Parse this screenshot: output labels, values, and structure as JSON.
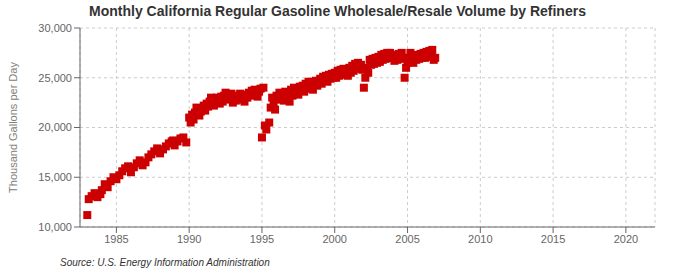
{
  "chart_data": {
    "type": "scatter",
    "title": "Monthly California Regular Gasoline Wholesale/Resale Volume by Refiners",
    "ylabel": "Thousand Gallons per Day",
    "annotations": [
      "Source: U.S. Energy Information Administration"
    ],
    "color": "#cc0000",
    "marker": "square",
    "grid": true,
    "xlim": [
      1982.5,
      2022
    ],
    "ylim": [
      10000,
      30000
    ],
    "xticks": [
      1985,
      1990,
      1995,
      2000,
      2005,
      2010,
      2015,
      2020
    ],
    "yticks": [
      {
        "value": 10000,
        "label": "10,000"
      },
      {
        "value": 15000,
        "label": "15,000"
      },
      {
        "value": 20000,
        "label": "20,000"
      },
      {
        "value": 25000,
        "label": "25,000"
      },
      {
        "value": 30000,
        "label": "30,000"
      }
    ],
    "x": [
      1983.0,
      1983.1,
      1983.3,
      1983.5,
      1983.7,
      1983.9,
      1984.0,
      1984.2,
      1984.4,
      1984.6,
      1984.8,
      1985.0,
      1985.2,
      1985.4,
      1985.6,
      1985.8,
      1986.0,
      1986.2,
      1986.4,
      1986.6,
      1986.8,
      1987.0,
      1987.2,
      1987.4,
      1987.6,
      1987.8,
      1988.0,
      1988.2,
      1988.4,
      1988.6,
      1988.8,
      1988.9,
      1989.0,
      1989.2,
      1989.4,
      1989.6,
      1989.8,
      1990.0,
      1990.1,
      1990.2,
      1990.3,
      1990.4,
      1990.5,
      1990.6,
      1990.7,
      1990.8,
      1990.9,
      1991.0,
      1991.1,
      1991.2,
      1991.3,
      1991.4,
      1991.5,
      1991.6,
      1991.7,
      1991.8,
      1991.9,
      1992.0,
      1992.1,
      1992.2,
      1992.3,
      1992.4,
      1992.5,
      1992.6,
      1992.7,
      1992.8,
      1992.9,
      1993.0,
      1993.1,
      1993.2,
      1993.3,
      1993.4,
      1993.5,
      1993.6,
      1993.7,
      1993.8,
      1993.9,
      1994.0,
      1994.1,
      1994.2,
      1994.3,
      1994.4,
      1994.5,
      1994.6,
      1994.7,
      1994.8,
      1994.9,
      1995.0,
      1995.1,
      1995.2,
      1995.3,
      1995.5,
      1995.6,
      1995.7,
      1995.8,
      1995.9,
      1996.0,
      1996.1,
      1996.2,
      1996.3,
      1996.4,
      1996.5,
      1996.6,
      1996.7,
      1996.8,
      1996.9,
      1997.0,
      1997.1,
      1997.2,
      1997.3,
      1997.4,
      1997.5,
      1997.6,
      1997.7,
      1997.8,
      1997.9,
      1998.0,
      1998.1,
      1998.2,
      1998.3,
      1998.4,
      1998.5,
      1998.6,
      1998.7,
      1998.8,
      1998.9,
      1999.0,
      1999.1,
      1999.2,
      1999.3,
      1999.4,
      1999.5,
      1999.6,
      1999.7,
      1999.8,
      1999.9,
      2000.0,
      2000.1,
      2000.2,
      2000.3,
      2000.4,
      2000.5,
      2000.6,
      2000.7,
      2000.8,
      2000.9,
      2001.0,
      2001.1,
      2001.2,
      2001.3,
      2001.4,
      2001.5,
      2001.6,
      2001.7,
      2001.8,
      2001.9,
      2002.0,
      2002.1,
      2002.2,
      2002.3,
      2002.4,
      2002.5,
      2002.6,
      2002.7,
      2002.8,
      2002.9,
      2003.0,
      2003.1,
      2003.2,
      2003.3,
      2003.4,
      2003.5,
      2003.6,
      2003.7,
      2003.8,
      2003.9,
      2004.0,
      2004.1,
      2004.2,
      2004.3,
      2004.4,
      2004.5,
      2004.6,
      2004.7,
      2004.8,
      2004.9,
      2005.0,
      2005.1,
      2005.2,
      2005.3,
      2005.4,
      2005.5,
      2005.6,
      2005.7,
      2005.8,
      2005.9,
      2006.0,
      2006.1,
      2006.2,
      2006.3,
      2006.4,
      2006.5,
      2006.6,
      2006.7,
      2006.8,
      2006.9
    ],
    "values": [
      11200,
      12800,
      13100,
      13400,
      13000,
      13300,
      13700,
      14300,
      14000,
      14600,
      15000,
      14800,
      15200,
      15600,
      15900,
      16100,
      15500,
      16000,
      16400,
      16700,
      16200,
      16500,
      17000,
      17300,
      17600,
      17900,
      17400,
      17800,
      18100,
      18400,
      18600,
      18700,
      18200,
      18600,
      18900,
      19000,
      18500,
      21000,
      20500,
      21300,
      20800,
      21500,
      22000,
      21800,
      21200,
      21600,
      21900,
      22200,
      21700,
      22400,
      22100,
      22600,
      23000,
      22500,
      22200,
      22700,
      23000,
      22800,
      22400,
      23100,
      22600,
      23200,
      23500,
      23000,
      23300,
      22800,
      23400,
      22500,
      23000,
      22700,
      23200,
      22900,
      23400,
      22800,
      23100,
      22600,
      23300,
      23000,
      23500,
      23200,
      23700,
      23300,
      23800,
      23500,
      23100,
      23600,
      23900,
      19000,
      24000,
      20200,
      19800,
      20500,
      22000,
      23000,
      22500,
      21800,
      23200,
      22800,
      23500,
      22900,
      23300,
      22700,
      23600,
      23000,
      23400,
      22600,
      23800,
      23200,
      24000,
      23500,
      23900,
      23300,
      24100,
      23700,
      24200,
      23600,
      24400,
      23900,
      24600,
      24100,
      24500,
      23800,
      24300,
      24700,
      24200,
      24600,
      24900,
      24400,
      25100,
      24700,
      25200,
      24600,
      25300,
      24900,
      25400,
      25000,
      25500,
      25000,
      25700,
      25200,
      25800,
      25300,
      25900,
      25400,
      25800,
      25200,
      26000,
      25500,
      26200,
      25700,
      26400,
      25900,
      26500,
      26000,
      26300,
      25800,
      24000,
      25000,
      26000,
      25500,
      26800,
      26300,
      26900,
      26400,
      27000,
      26500,
      27100,
      26600,
      27300,
      26800,
      27400,
      26900,
      27500,
      27000,
      27500,
      27000,
      27200,
      26700,
      27300,
      26800,
      27400,
      26900,
      27500,
      27000,
      25000,
      26000,
      26500,
      27000,
      27500,
      27000,
      26500,
      27200,
      26800,
      27300,
      26900,
      27400,
      27000,
      27500,
      27000,
      27600,
      27100,
      27700,
      27200,
      27800,
      26800,
      27000
    ]
  }
}
